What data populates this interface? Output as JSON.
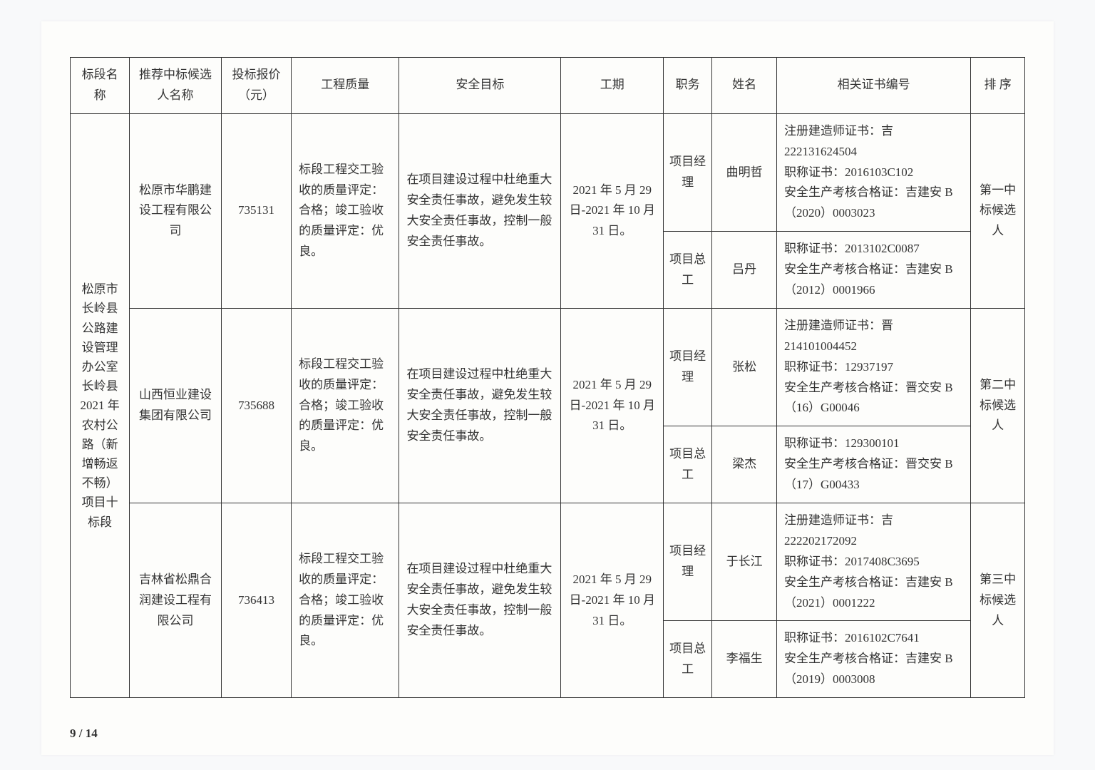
{
  "headers": {
    "section": "标段名称",
    "company": "推荐中标候选人名称",
    "price": "投标报价（元）",
    "quality": "工程质量",
    "safety": "安全目标",
    "period": "工期",
    "position": "职务",
    "name": "姓名",
    "cert": "相关证书编号",
    "rank": "排 序"
  },
  "section_name": "松原市长岭县公路建设管理办公室长岭县 2021 年农村公路（新增畅返不畅）项目十标段",
  "candidates": [
    {
      "company": "松原市华鹏建设工程有限公司",
      "price": "735131",
      "quality": "标段工程交工验收的质量评定：合格；竣工验收的质量评定：优良。",
      "safety": "在项目建设过程中杜绝重大安全责任事故，避免发生较大安全责任事故，控制一般安全责任事故。",
      "period": "2021 年 5 月 29 日-2021 年 10 月 31 日。",
      "rank": "第一中标候选人",
      "personnel": [
        {
          "position": "项目经理",
          "name": "曲明哲",
          "cert": "注册建造师证书：吉 222131624504\n职称证书：2016103C102\n安全生产考核合格证：吉建安 B（2020）0003023"
        },
        {
          "position": "项目总工",
          "name": "吕丹",
          "cert": "职称证书：2013102C0087\n安全生产考核合格证：吉建安 B（2012）0001966"
        }
      ]
    },
    {
      "company": "山西恒业建设集团有限公司",
      "price": "735688",
      "quality": "标段工程交工验收的质量评定：合格；竣工验收的质量评定：优良。",
      "safety": "在项目建设过程中杜绝重大安全责任事故，避免发生较大安全责任事故，控制一般安全责任事故。",
      "period": "2021 年 5 月 29 日-2021 年 10 月 31 日。",
      "rank": "第二中标候选人",
      "personnel": [
        {
          "position": "项目经理",
          "name": "张松",
          "cert": "注册建造师证书：晋 214101004452\n职称证书：12937197\n安全生产考核合格证：晋交安 B（16）G00046"
        },
        {
          "position": "项目总工",
          "name": "梁杰",
          "cert": "职称证书：129300101\n安全生产考核合格证：晋交安 B（17）G00433"
        }
      ]
    },
    {
      "company": "吉林省松鼎合润建设工程有限公司",
      "price": "736413",
      "quality": "标段工程交工验收的质量评定：合格；竣工验收的质量评定：优良。",
      "safety": "在项目建设过程中杜绝重大安全责任事故，避免发生较大安全责任事故，控制一般安全责任事故。",
      "period": "2021 年 5 月 29 日-2021 年 10 月 31 日。",
      "rank": "第三中标候选人",
      "personnel": [
        {
          "position": "项目经理",
          "name": "于长江",
          "cert": "注册建造师证书：吉 222202172092\n职称证书：2017408C3695\n安全生产考核合格证：吉建安 B（2021）0001222"
        },
        {
          "position": "项目总工",
          "name": "李福生",
          "cert": "职称证书：2016102C7641\n安全生产考核合格证：吉建安 B（2019）0003008"
        }
      ]
    }
  ],
  "footer": "9 / 14",
  "colors": {
    "page_bg": "#fdfdfb",
    "body_bg": "#f8f9fa",
    "border": "#333333",
    "text": "#333333"
  },
  "typography": {
    "font_family": "SimSun",
    "cell_fontsize": 17,
    "line_height": 1.7
  }
}
